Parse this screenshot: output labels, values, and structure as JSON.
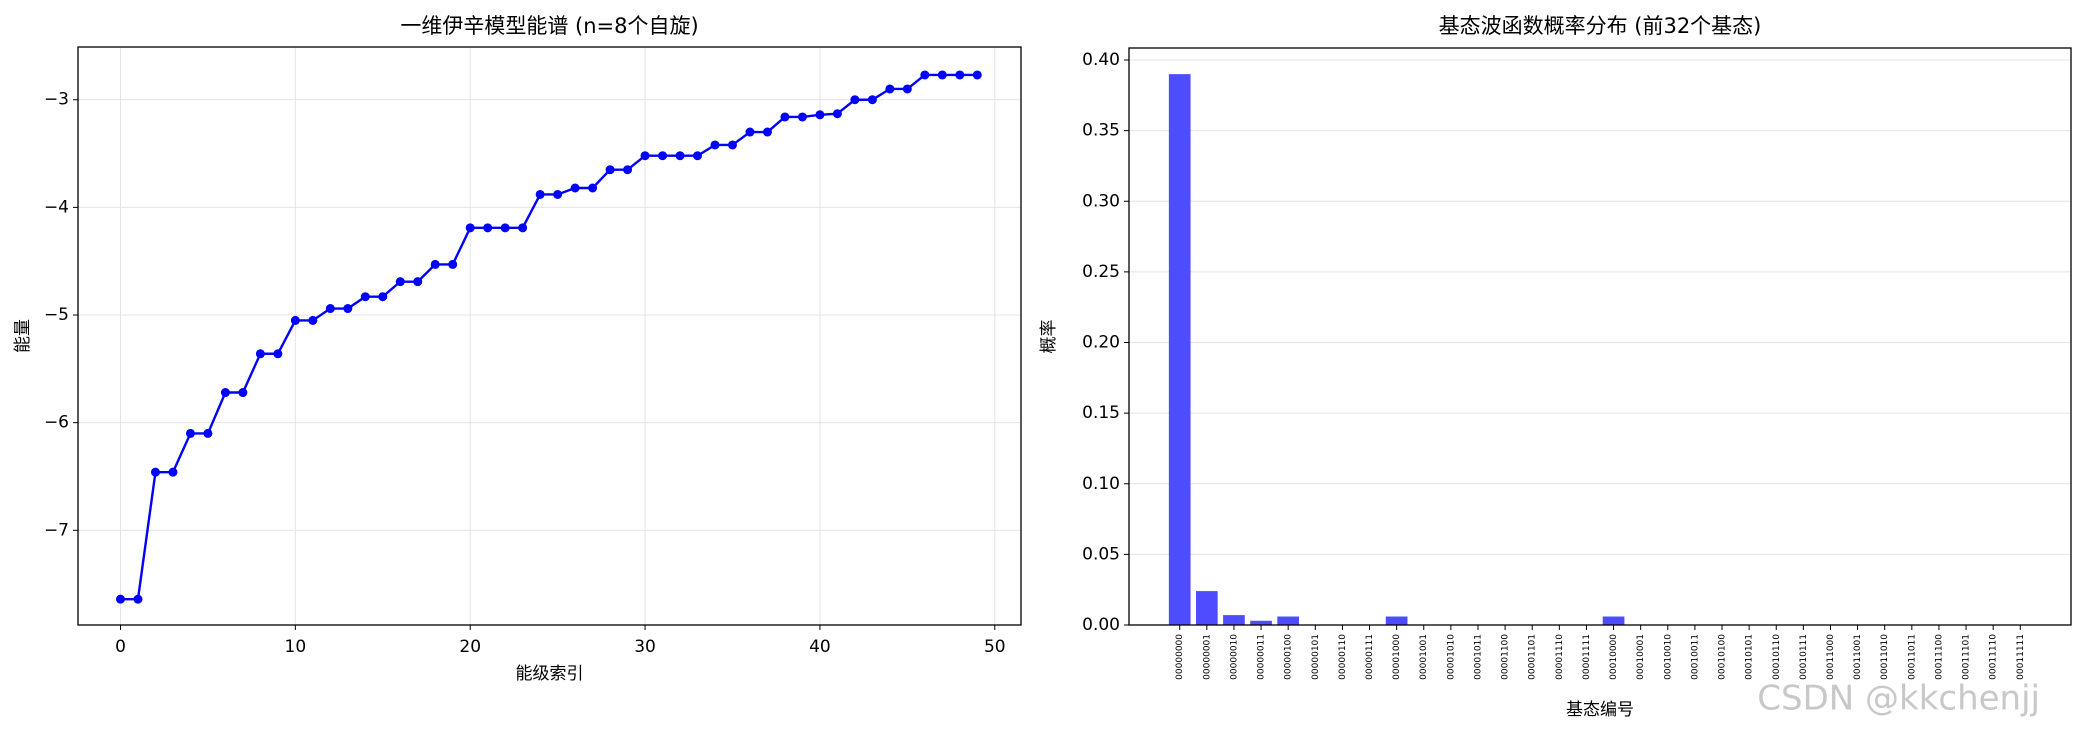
{
  "chart_data": [
    {
      "type": "line",
      "title": "一维伊辛模型能谱 (n=8个自旋)",
      "x_label": "能级索引",
      "y_label": "能量",
      "x": [
        0,
        1,
        2,
        3,
        4,
        5,
        6,
        7,
        8,
        9,
        10,
        11,
        12,
        13,
        14,
        15,
        16,
        17,
        18,
        19,
        20,
        21,
        22,
        23,
        24,
        25,
        26,
        27,
        28,
        29,
        30,
        31,
        32,
        33,
        34,
        35,
        36,
        37,
        38,
        39,
        40,
        41,
        42,
        43,
        44,
        45,
        46,
        47,
        48,
        49
      ],
      "series": [
        {
          "name": "能量",
          "color": "#0000ff",
          "values": [
            -7.64,
            -7.64,
            -6.46,
            -6.46,
            -6.1,
            -6.1,
            -5.72,
            -5.72,
            -5.36,
            -5.36,
            -5.05,
            -5.05,
            -4.94,
            -4.94,
            -4.83,
            -4.83,
            -4.69,
            -4.69,
            -4.53,
            -4.53,
            -4.19,
            -4.19,
            -4.19,
            -4.19,
            -3.88,
            -3.88,
            -3.82,
            -3.82,
            -3.65,
            -3.65,
            -3.52,
            -3.52,
            -3.52,
            -3.52,
            -3.42,
            -3.42,
            -3.3,
            -3.3,
            -3.16,
            -3.16,
            -3.14,
            -3.13,
            -3.0,
            -3.0,
            -2.9,
            -2.9,
            -2.77,
            -2.77,
            -2.77,
            -2.77
          ]
        }
      ],
      "xlim": [
        -2.43,
        51.5
      ],
      "xticks": [
        0,
        10,
        20,
        30,
        40,
        50
      ],
      "ylim": [
        -7.88,
        -2.51
      ],
      "yticks": [
        {
          "value": -7,
          "label": "−7"
        },
        {
          "value": -6,
          "label": "−6"
        },
        {
          "value": -5,
          "label": "−5"
        },
        {
          "value": -4,
          "label": "−4"
        },
        {
          "value": -3,
          "label": "−3"
        }
      ],
      "grid": true
    },
    {
      "type": "bar",
      "title": "基态波函数概率分布 (前32个基态)",
      "x_label": "基态编号",
      "y_label": "概率",
      "categories": [
        "00000000",
        "00000001",
        "00000010",
        "00000011",
        "00000100",
        "00000101",
        "00000110",
        "00000111",
        "00001000",
        "00001001",
        "00001010",
        "00001011",
        "00001100",
        "00001101",
        "00001110",
        "00001111",
        "00010000",
        "00010001",
        "00010010",
        "00010011",
        "00010100",
        "00010101",
        "00010110",
        "00010111",
        "00011000",
        "00011001",
        "00011010",
        "00011011",
        "00011100",
        "00011101",
        "00011110",
        "00011111"
      ],
      "values": [
        0.39,
        0.024,
        0.007,
        0.003,
        0.006,
        0,
        0,
        0,
        0.006,
        0,
        0,
        0,
        0,
        0,
        0,
        0,
        0.006,
        0,
        0,
        0,
        0,
        0,
        0,
        0,
        0,
        0,
        0,
        0,
        0,
        0,
        0,
        0
      ],
      "color": "#4d4dff",
      "ylim": [
        0,
        0.4085
      ],
      "yticks": [
        {
          "value": 0,
          "label": "0.00"
        },
        {
          "value": 0.05,
          "label": "0.05"
        },
        {
          "value": 0.1,
          "label": "0.10"
        },
        {
          "value": 0.15,
          "label": "0.15"
        },
        {
          "value": 0.2,
          "label": "0.20"
        },
        {
          "value": 0.25,
          "label": "0.25"
        },
        {
          "value": 0.3,
          "label": "0.30"
        },
        {
          "value": 0.35,
          "label": "0.35"
        },
        {
          "value": 0.4,
          "label": "0.40"
        }
      ],
      "grid": true
    }
  ],
  "watermark": "CSDN @kkchenjj"
}
